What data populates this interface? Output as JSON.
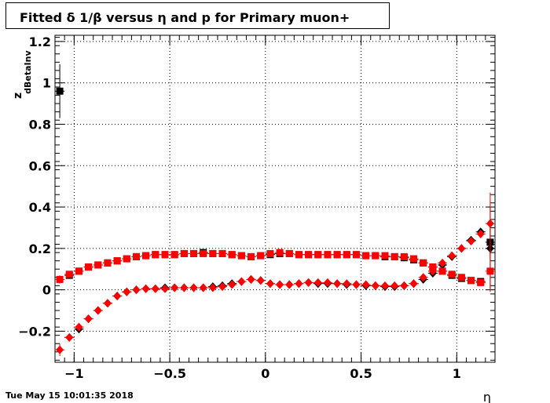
{
  "title": "Fitted δ 1/β versus η and p for Primary muon+",
  "timestamp": "Tue May 15 10:01:35 2018",
  "chart_data": {
    "type": "scatter",
    "title": "Fitted δ 1/β versus η and p for Primary muon+",
    "xlabel": "η",
    "ylabel": "z_dBetaInv",
    "xlim": [
      -1.1,
      1.2
    ],
    "ylim": [
      -0.35,
      1.23
    ],
    "xticks": [
      -1,
      -0.5,
      0,
      0.5,
      1
    ],
    "xtick_labels": [
      "−1",
      "−0.5",
      "0",
      "0.5",
      "1"
    ],
    "yticks": [
      -0.2,
      0,
      0.2,
      0.4,
      0.6,
      0.8,
      1,
      1.2
    ],
    "ytick_labels": [
      "−0.2",
      "0",
      "0.2",
      "0.4",
      "0.6",
      "0.8",
      "1",
      "1.2"
    ],
    "grid": true,
    "colors": {
      "black": "#000000",
      "red": "#ff0000"
    },
    "series": [
      {
        "marker": "square",
        "color": "#000000",
        "x": [
          -1.075,
          -1.025,
          -0.975,
          -0.925,
          -0.875,
          -0.825,
          -0.775,
          -0.725,
          -0.675,
          -0.625,
          -0.575,
          -0.525,
          -0.475,
          -0.425,
          -0.375,
          -0.325,
          -0.275,
          -0.225,
          -0.175,
          -0.125,
          -0.075,
          -0.025,
          0.025,
          0.075,
          0.125,
          0.175,
          0.225,
          0.275,
          0.325,
          0.375,
          0.425,
          0.475,
          0.525,
          0.575,
          0.625,
          0.675,
          0.725,
          0.775,
          0.825,
          0.875,
          0.925,
          0.975,
          1.025,
          1.075,
          1.125,
          1.175
        ],
        "y": [
          0.96,
          0.07,
          0.09,
          0.11,
          0.12,
          0.13,
          0.14,
          0.15,
          0.16,
          0.165,
          0.17,
          0.17,
          0.17,
          0.175,
          0.175,
          0.18,
          0.175,
          0.175,
          0.17,
          0.165,
          0.16,
          0.165,
          0.17,
          0.175,
          0.175,
          0.17,
          0.17,
          0.17,
          0.17,
          0.17,
          0.17,
          0.17,
          0.165,
          0.165,
          0.16,
          0.16,
          0.155,
          0.145,
          0.13,
          0.11,
          0.09,
          0.07,
          0.055,
          0.045,
          0.04,
          0.23
        ],
        "err": [
          0.13,
          0.01,
          0.01,
          0.01,
          0.01,
          0.01,
          0.01,
          0.01,
          0.01,
          0.01,
          0.01,
          0.01,
          0.01,
          0.01,
          0.01,
          0.01,
          0.01,
          0.01,
          0.01,
          0.01,
          0.01,
          0.01,
          0.01,
          0.01,
          0.01,
          0.01,
          0.01,
          0.01,
          0.01,
          0.01,
          0.01,
          0.01,
          0.01,
          0.01,
          0.01,
          0.01,
          0.01,
          0.01,
          0.01,
          0.01,
          0.01,
          0.01,
          0.01,
          0.01,
          0.01,
          0.08
        ]
      },
      {
        "marker": "diamond",
        "color": "#000000",
        "x": [
          -1.025,
          -0.975,
          -0.925,
          -0.875,
          -0.825,
          -0.775,
          -0.725,
          -0.675,
          -0.625,
          -0.575,
          -0.525,
          -0.475,
          -0.425,
          -0.375,
          -0.325,
          -0.275,
          -0.225,
          -0.175,
          -0.125,
          -0.075,
          -0.025,
          0.025,
          0.075,
          0.125,
          0.175,
          0.225,
          0.275,
          0.325,
          0.375,
          0.425,
          0.475,
          0.525,
          0.575,
          0.625,
          0.675,
          0.725,
          0.775,
          0.825,
          0.875,
          0.925,
          0.975,
          1.025,
          1.075,
          1.125,
          1.175
        ],
        "y": [
          -0.23,
          -0.19,
          -0.14,
          -0.1,
          -0.065,
          -0.03,
          -0.01,
          0.0,
          0.005,
          0.005,
          0.01,
          0.01,
          0.01,
          0.01,
          0.01,
          0.015,
          0.02,
          0.03,
          0.04,
          0.05,
          0.045,
          0.03,
          0.025,
          0.025,
          0.03,
          0.035,
          0.03,
          0.03,
          0.03,
          0.025,
          0.025,
          0.02,
          0.02,
          0.015,
          0.015,
          0.02,
          0.03,
          0.05,
          0.08,
          0.12,
          0.16,
          0.2,
          0.24,
          0.28,
          0.2
        ],
        "err": [
          0.01,
          0.01,
          0.01,
          0.01,
          0.01,
          0.01,
          0.01,
          0.01,
          0.01,
          0.01,
          0.01,
          0.01,
          0.01,
          0.01,
          0.01,
          0.01,
          0.01,
          0.01,
          0.01,
          0.01,
          0.01,
          0.01,
          0.01,
          0.01,
          0.01,
          0.01,
          0.01,
          0.01,
          0.01,
          0.01,
          0.01,
          0.01,
          0.01,
          0.01,
          0.01,
          0.01,
          0.01,
          0.01,
          0.01,
          0.01,
          0.01,
          0.01,
          0.01,
          0.01,
          0.2
        ]
      },
      {
        "marker": "square",
        "color": "#ff0000",
        "x": [
          -1.075,
          -1.025,
          -0.975,
          -0.925,
          -0.875,
          -0.825,
          -0.775,
          -0.725,
          -0.675,
          -0.625,
          -0.575,
          -0.525,
          -0.475,
          -0.425,
          -0.375,
          -0.325,
          -0.275,
          -0.225,
          -0.175,
          -0.125,
          -0.075,
          -0.025,
          0.025,
          0.075,
          0.125,
          0.175,
          0.225,
          0.275,
          0.325,
          0.375,
          0.425,
          0.475,
          0.525,
          0.575,
          0.625,
          0.675,
          0.725,
          0.775,
          0.825,
          0.875,
          0.925,
          0.975,
          1.025,
          1.075,
          1.125,
          1.175
        ],
        "y": [
          0.05,
          0.075,
          0.09,
          0.11,
          0.12,
          0.13,
          0.14,
          0.15,
          0.16,
          0.165,
          0.17,
          0.17,
          0.17,
          0.175,
          0.175,
          0.175,
          0.175,
          0.175,
          0.17,
          0.165,
          0.16,
          0.165,
          0.175,
          0.18,
          0.175,
          0.17,
          0.17,
          0.17,
          0.17,
          0.17,
          0.17,
          0.17,
          0.165,
          0.165,
          0.165,
          0.16,
          0.16,
          0.15,
          0.13,
          0.11,
          0.09,
          0.075,
          0.06,
          0.045,
          0.035,
          0.09
        ],
        "err": [
          0.02,
          0.01,
          0.01,
          0.01,
          0.01,
          0.01,
          0.01,
          0.01,
          0.01,
          0.01,
          0.01,
          0.01,
          0.01,
          0.01,
          0.01,
          0.01,
          0.01,
          0.01,
          0.01,
          0.01,
          0.01,
          0.01,
          0.01,
          0.01,
          0.01,
          0.01,
          0.01,
          0.01,
          0.01,
          0.01,
          0.01,
          0.01,
          0.01,
          0.01,
          0.01,
          0.01,
          0.01,
          0.01,
          0.01,
          0.01,
          0.01,
          0.01,
          0.01,
          0.01,
          0.01,
          0.1
        ]
      },
      {
        "marker": "diamond",
        "color": "#ff0000",
        "x": [
          -1.075,
          -1.025,
          -0.975,
          -0.925,
          -0.875,
          -0.825,
          -0.775,
          -0.725,
          -0.675,
          -0.625,
          -0.575,
          -0.525,
          -0.475,
          -0.425,
          -0.375,
          -0.325,
          -0.275,
          -0.225,
          -0.175,
          -0.125,
          -0.075,
          -0.025,
          0.025,
          0.075,
          0.125,
          0.175,
          0.225,
          0.275,
          0.325,
          0.375,
          0.425,
          0.475,
          0.525,
          0.575,
          0.625,
          0.675,
          0.725,
          0.775,
          0.825,
          0.875,
          0.925,
          0.975,
          1.025,
          1.075,
          1.125,
          1.175
        ],
        "y": [
          -0.29,
          -0.23,
          -0.18,
          -0.14,
          -0.1,
          -0.065,
          -0.03,
          -0.01,
          0.0,
          0.005,
          0.005,
          0.005,
          0.01,
          0.01,
          0.01,
          0.01,
          0.01,
          0.015,
          0.025,
          0.04,
          0.05,
          0.045,
          0.03,
          0.025,
          0.025,
          0.03,
          0.035,
          0.035,
          0.035,
          0.03,
          0.03,
          0.025,
          0.025,
          0.02,
          0.02,
          0.02,
          0.02,
          0.03,
          0.06,
          0.09,
          0.13,
          0.165,
          0.2,
          0.235,
          0.27,
          0.32
        ],
        "err": [
          0.03,
          0.01,
          0.01,
          0.01,
          0.01,
          0.01,
          0.01,
          0.01,
          0.01,
          0.01,
          0.01,
          0.01,
          0.01,
          0.01,
          0.01,
          0.01,
          0.01,
          0.01,
          0.01,
          0.01,
          0.01,
          0.01,
          0.01,
          0.01,
          0.01,
          0.01,
          0.01,
          0.01,
          0.01,
          0.01,
          0.01,
          0.01,
          0.01,
          0.01,
          0.01,
          0.01,
          0.01,
          0.01,
          0.01,
          0.01,
          0.01,
          0.01,
          0.01,
          0.01,
          0.01,
          0.15
        ]
      }
    ]
  }
}
